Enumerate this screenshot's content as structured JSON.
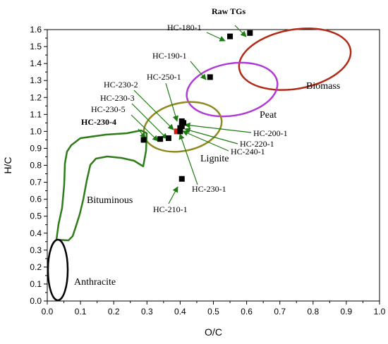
{
  "chart_data": {
    "type": "scatter",
    "xlabel": "O/C",
    "ylabel": "H/C",
    "xlim": [
      0.0,
      1.0
    ],
    "ylim": [
      0.0,
      1.6
    ],
    "x_ticks": [
      "0.0",
      "0.1",
      "0.2",
      "0.3",
      "0.4",
      "0.5",
      "0.6",
      "0.7",
      "0.8",
      "0.9",
      "1.0"
    ],
    "y_ticks": [
      "0.0",
      "0.1",
      "0.2",
      "0.3",
      "0.4",
      "0.5",
      "0.6",
      "0.7",
      "0.8",
      "0.9",
      "1.0",
      "1.1",
      "1.2",
      "1.3",
      "1.4",
      "1.5",
      "1.6"
    ],
    "grid": false,
    "points": [
      {
        "label": "Raw TGs",
        "x": 0.61,
        "y": 1.58,
        "bold": true
      },
      {
        "label": "HC-180-1",
        "x": 0.55,
        "y": 1.56,
        "bold": false
      },
      {
        "label": "HC-190-1",
        "x": 0.49,
        "y": 1.32,
        "bold": false
      },
      {
        "label": "HC-250-1",
        "x": 0.405,
        "y": 1.06,
        "bold": false
      },
      {
        "label": "HC-230-2",
        "x": 0.365,
        "y": 0.96,
        "bold": false
      },
      {
        "label": "HC-230-3",
        "x": 0.34,
        "y": 0.955,
        "bold": false
      },
      {
        "label": "HC-230-5",
        "x": 0.39,
        "y": 1.0,
        "bold": false
      },
      {
        "label": "HC-230-4",
        "x": 0.29,
        "y": 0.95,
        "bold": true
      },
      {
        "label": "HC-200-1",
        "x": 0.41,
        "y": 1.05,
        "bold": false
      },
      {
        "label": "HC-220-1",
        "x": 0.405,
        "y": 1.03,
        "bold": false
      },
      {
        "label": "HC-240-1",
        "x": 0.4,
        "y": 1.02,
        "bold": false
      },
      {
        "label": "HC-230-1",
        "x": 0.4,
        "y": 1.0,
        "bold": false
      },
      {
        "label": "HC-210-1",
        "x": 0.405,
        "y": 0.72,
        "bold": false
      }
    ],
    "regions": [
      {
        "name": "Biomass",
        "color": "#b22a18"
      },
      {
        "name": "Peat",
        "color": "#b03ad8"
      },
      {
        "name": "Lignite",
        "color": "#8f8a20"
      },
      {
        "name": "Bituminous",
        "color": "#2e7d1a"
      },
      {
        "name": "Anthracite",
        "color": "#000000"
      }
    ],
    "marker_color": "#000000",
    "arrow_color": "#1e7a12"
  }
}
